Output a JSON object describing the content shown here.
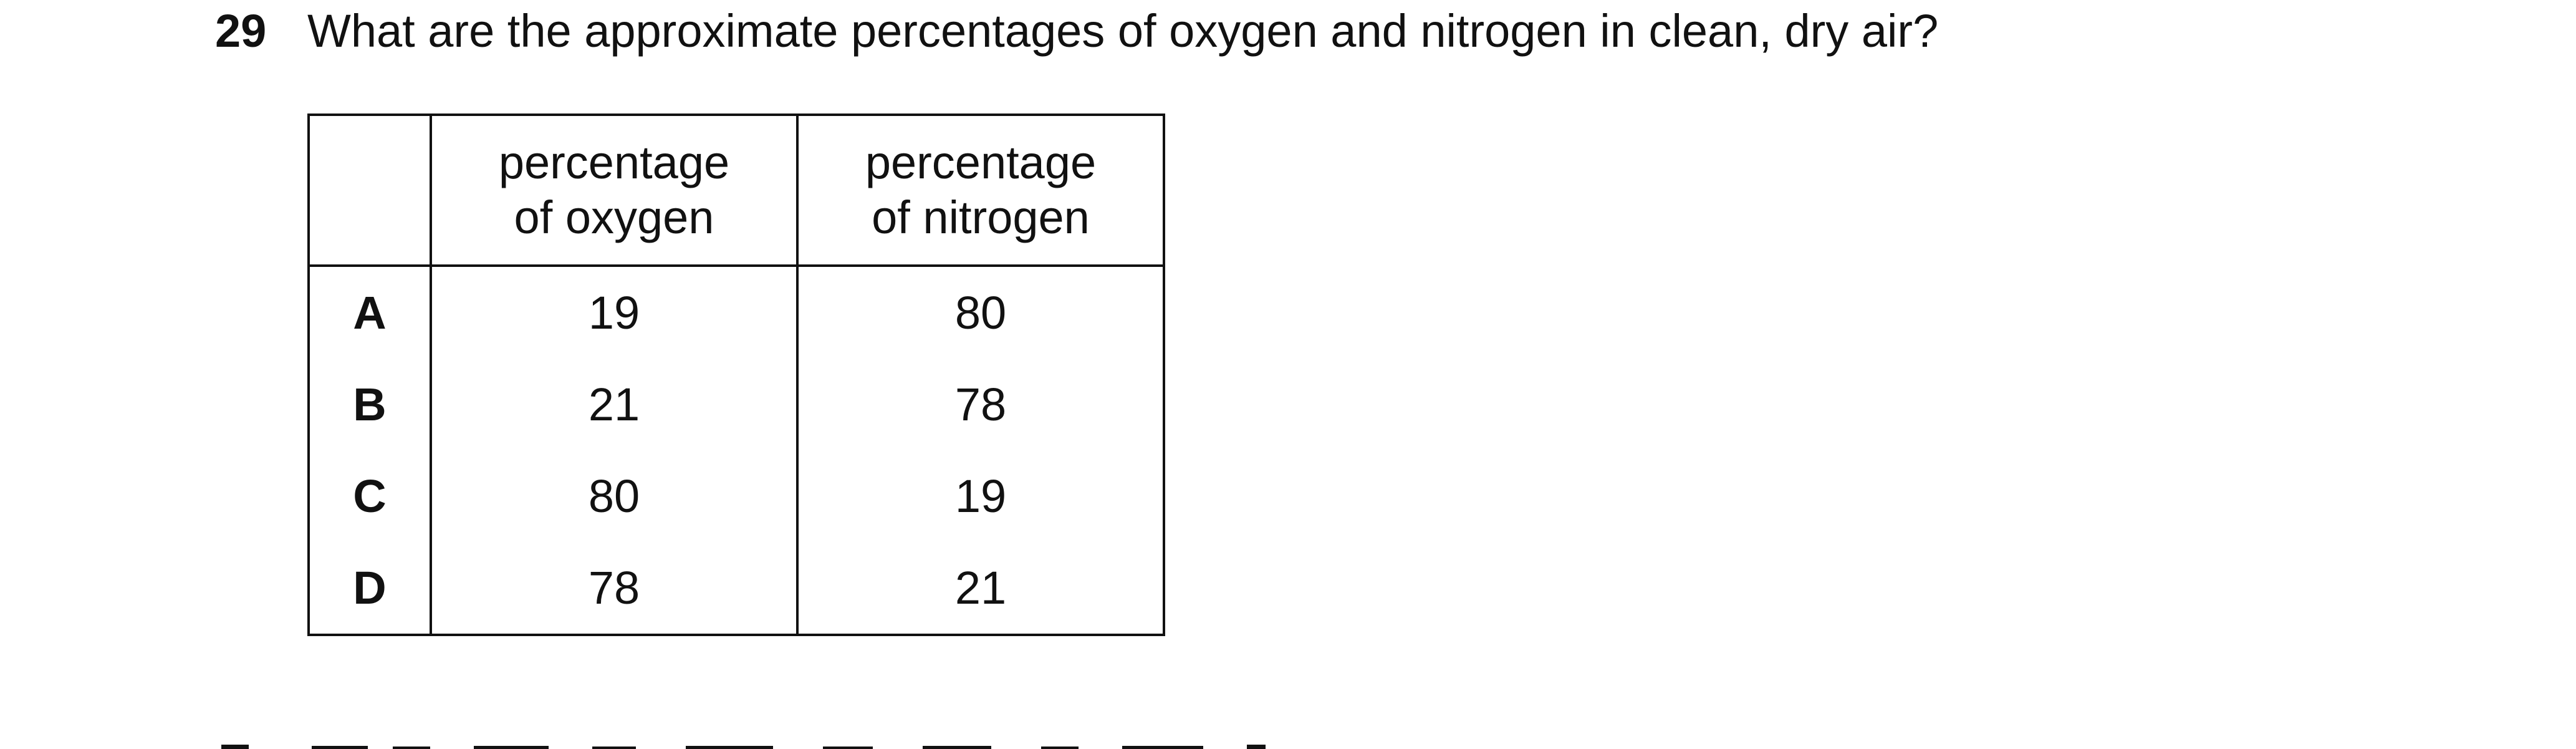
{
  "question": {
    "number": "29",
    "text": "What are the approximate percentages of oxygen and nitrogen in clean, dry air?"
  },
  "table": {
    "headers": {
      "key": "",
      "oxygen_line1": "percentage",
      "oxygen_line2": "of oxygen",
      "nitrogen_line1": "percentage",
      "nitrogen_line2": "of nitrogen"
    },
    "rows": [
      {
        "key": "A",
        "oxygen": "19",
        "nitrogen": "80"
      },
      {
        "key": "B",
        "oxygen": "21",
        "nitrogen": "78"
      },
      {
        "key": "C",
        "oxygen": "80",
        "nitrogen": "19"
      },
      {
        "key": "D",
        "oxygen": "78",
        "nitrogen": "21"
      }
    ]
  }
}
